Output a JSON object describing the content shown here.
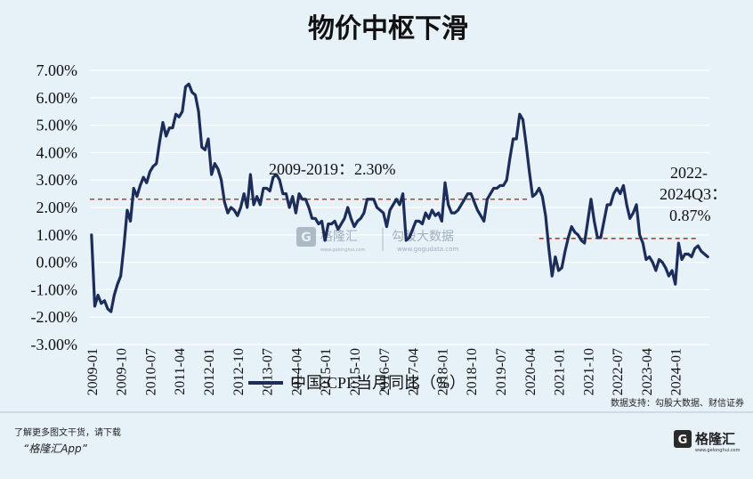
{
  "chart_data": {
    "type": "line",
    "title": "物价中枢下滑",
    "series": [
      {
        "name": "中国:CPI:当月同比（%）",
        "color": "#1c2d5a",
        "x": [
          "2009-01",
          "2009-02",
          "2009-03",
          "2009-04",
          "2009-05",
          "2009-06",
          "2009-07",
          "2009-08",
          "2009-09",
          "2009-10",
          "2009-11",
          "2009-12",
          "2010-01",
          "2010-02",
          "2010-03",
          "2010-04",
          "2010-05",
          "2010-06",
          "2010-07",
          "2010-08",
          "2010-09",
          "2010-10",
          "2010-11",
          "2010-12",
          "2011-01",
          "2011-02",
          "2011-03",
          "2011-04",
          "2011-05",
          "2011-06",
          "2011-07",
          "2011-08",
          "2011-09",
          "2011-10",
          "2011-11",
          "2011-12",
          "2012-01",
          "2012-02",
          "2012-03",
          "2012-04",
          "2012-05",
          "2012-06",
          "2012-07",
          "2012-08",
          "2012-09",
          "2012-10",
          "2012-11",
          "2012-12",
          "2013-01",
          "2013-02",
          "2013-03",
          "2013-04",
          "2013-05",
          "2013-06",
          "2013-07",
          "2013-08",
          "2013-09",
          "2013-10",
          "2013-11",
          "2013-12",
          "2014-01",
          "2014-02",
          "2014-03",
          "2014-04",
          "2014-05",
          "2014-06",
          "2014-07",
          "2014-08",
          "2014-09",
          "2014-10",
          "2014-11",
          "2014-12",
          "2015-01",
          "2015-02",
          "2015-03",
          "2015-04",
          "2015-05",
          "2015-06",
          "2015-07",
          "2015-08",
          "2015-09",
          "2015-10",
          "2015-11",
          "2015-12",
          "2016-01",
          "2016-02",
          "2016-03",
          "2016-04",
          "2016-05",
          "2016-06",
          "2016-07",
          "2016-08",
          "2016-09",
          "2016-10",
          "2016-11",
          "2016-12",
          "2017-01",
          "2017-02",
          "2017-03",
          "2017-04",
          "2017-05",
          "2017-06",
          "2017-07",
          "2017-08",
          "2017-09",
          "2017-10",
          "2017-11",
          "2017-12",
          "2018-01",
          "2018-02",
          "2018-03",
          "2018-04",
          "2018-05",
          "2018-06",
          "2018-07",
          "2018-08",
          "2018-09",
          "2018-10",
          "2018-11",
          "2018-12",
          "2019-01",
          "2019-02",
          "2019-03",
          "2019-04",
          "2019-05",
          "2019-06",
          "2019-07",
          "2019-08",
          "2019-09",
          "2019-10",
          "2019-11",
          "2019-12",
          "2020-01",
          "2020-02",
          "2020-03",
          "2020-04",
          "2020-05",
          "2020-06",
          "2020-07",
          "2020-08",
          "2020-09",
          "2020-10",
          "2020-11",
          "2020-12",
          "2021-01",
          "2021-02",
          "2021-03",
          "2021-04",
          "2021-05",
          "2021-06",
          "2021-07",
          "2021-08",
          "2021-09",
          "2021-10",
          "2021-11",
          "2021-12",
          "2022-01",
          "2022-02",
          "2022-03",
          "2022-04",
          "2022-05",
          "2022-06",
          "2022-07",
          "2022-08",
          "2022-09",
          "2022-10",
          "2022-11",
          "2022-12",
          "2023-01",
          "2023-02",
          "2023-03",
          "2023-04",
          "2023-05",
          "2023-06",
          "2023-07",
          "2023-08",
          "2023-09",
          "2023-10",
          "2023-11",
          "2023-12",
          "2024-01",
          "2024-02",
          "2024-03",
          "2024-04",
          "2024-05",
          "2024-06",
          "2024-07",
          "2024-08",
          "2024-09",
          "2024-10",
          "2024-11"
        ],
        "values": [
          1.0,
          -1.6,
          -1.2,
          -1.5,
          -1.4,
          -1.7,
          -1.8,
          -1.2,
          -0.8,
          -0.5,
          0.6,
          1.9,
          1.5,
          2.7,
          2.4,
          2.8,
          3.1,
          2.9,
          3.3,
          3.5,
          3.6,
          4.4,
          5.1,
          4.6,
          4.9,
          4.9,
          5.4,
          5.3,
          5.5,
          6.4,
          6.5,
          6.2,
          6.1,
          5.5,
          4.2,
          4.1,
          4.5,
          3.2,
          3.6,
          3.4,
          3.0,
          2.2,
          1.8,
          2.0,
          1.9,
          1.7,
          2.0,
          2.5,
          2.0,
          3.2,
          2.1,
          2.4,
          2.1,
          2.7,
          2.7,
          2.6,
          3.1,
          3.2,
          3.0,
          2.5,
          2.5,
          2.0,
          2.4,
          1.8,
          2.5,
          2.3,
          2.3,
          2.0,
          1.6,
          1.6,
          1.4,
          1.5,
          0.8,
          1.4,
          1.4,
          1.5,
          1.2,
          1.4,
          1.6,
          2.0,
          1.6,
          1.3,
          1.5,
          1.6,
          1.8,
          2.3,
          2.3,
          2.3,
          2.0,
          1.9,
          1.8,
          1.3,
          1.9,
          2.1,
          2.3,
          2.1,
          2.5,
          0.8,
          0.9,
          1.2,
          1.5,
          1.5,
          1.4,
          1.8,
          1.6,
          1.9,
          1.7,
          1.8,
          1.5,
          2.9,
          2.1,
          1.8,
          1.8,
          1.9,
          2.1,
          2.3,
          2.5,
          2.5,
          2.2,
          1.9,
          1.7,
          1.5,
          2.3,
          2.5,
          2.7,
          2.7,
          2.8,
          2.8,
          3.0,
          3.8,
          4.5,
          4.5,
          5.4,
          5.2,
          4.3,
          3.3,
          2.4,
          2.5,
          2.7,
          2.4,
          1.7,
          0.5,
          -0.5,
          0.2,
          -0.3,
          -0.2,
          0.4,
          0.9,
          1.3,
          1.1,
          1.0,
          0.8,
          0.7,
          1.5,
          2.3,
          1.5,
          0.9,
          0.9,
          1.5,
          2.1,
          2.1,
          2.5,
          2.7,
          2.5,
          2.8,
          2.1,
          1.6,
          1.8,
          2.1,
          1.0,
          0.7,
          0.1,
          0.2,
          0.0,
          -0.3,
          0.1,
          0.0,
          -0.2,
          -0.5,
          -0.3,
          -0.8,
          0.7,
          0.1,
          0.3,
          0.3,
          0.2,
          0.5,
          0.6,
          0.4,
          0.3,
          0.2
        ]
      }
    ],
    "y_tick_labels": [
      "7.00%",
      "6.00%",
      "5.00%",
      "4.00%",
      "3.00%",
      "2.00%",
      "1.00%",
      "0.00%",
      "-1.00%",
      "-2.00%",
      "-3.00%"
    ],
    "x_tick_labels": [
      "2009-01",
      "2009-10",
      "2010-07",
      "2011-04",
      "2012-01",
      "2012-10",
      "2013-07",
      "2014-04",
      "2015-01",
      "2015-10",
      "2016-07",
      "2017-04",
      "2018-01",
      "2018-10",
      "2019-07",
      "2020-04",
      "2021-01",
      "2021-10",
      "2022-07",
      "2023-04",
      "2024-01"
    ],
    "ylim": [
      -3,
      7
    ],
    "grid": "horizontal",
    "legend_position": "bottom",
    "reference_lines": [
      {
        "label": "2009-2019：2.30%",
        "value": 2.3,
        "from": "2009-01",
        "to": "2020-04",
        "color": "#c0392b"
      },
      {
        "label_lines": [
          "2022-",
          "2024Q3：",
          "0.87%"
        ],
        "value": 0.87,
        "from": "2020-07",
        "to": "2024-11",
        "color": "#c0392b"
      }
    ]
  },
  "source": "数据支持：勾股大数据、财信证券",
  "watermark": {
    "brand": "格隆汇",
    "brand_sub": "www.gelonghui.com",
    "data": "勾股大数据",
    "data_sub": "www.gogudata.com"
  },
  "footer": {
    "line1": "了解更多图文干货，请下载",
    "line2": "“格隆汇App”",
    "logo_text": "格隆汇",
    "logo_sub": "www.gelonghui.com"
  },
  "colors": {
    "background": "#e6f1f8",
    "line": "#1c2d5a",
    "reference": "#c0392b",
    "grid": "#ffffff"
  }
}
